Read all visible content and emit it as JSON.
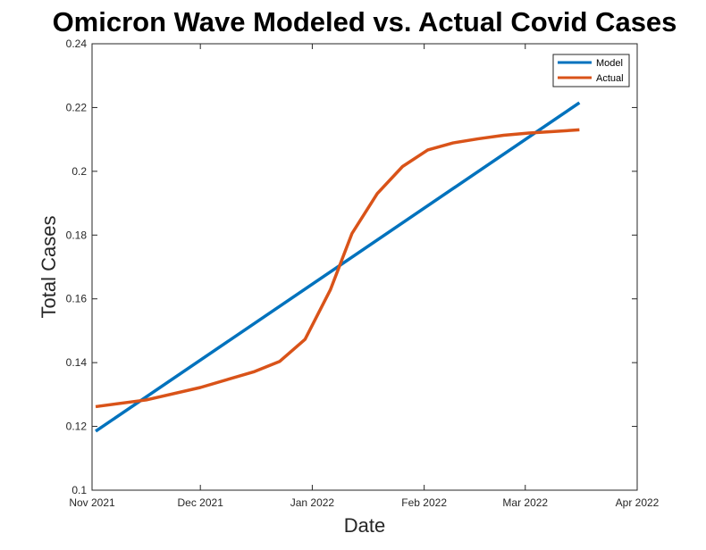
{
  "chart_data": {
    "type": "line",
    "title": "Omicron Wave Modeled vs. Actual Covid Cases",
    "xlabel": "Date",
    "ylabel": "Total Cases",
    "x_axis_type": "date",
    "xlim": [
      "2021-11-01",
      "2022-04-01"
    ],
    "ylim": [
      0.1,
      0.24
    ],
    "x_ticks": [
      {
        "date": "2021-11-01",
        "label": "Nov 2021"
      },
      {
        "date": "2021-12-01",
        "label": "Dec 2021"
      },
      {
        "date": "2022-01-01",
        "label": "Jan 2022"
      },
      {
        "date": "2022-02-01",
        "label": "Feb 2022"
      },
      {
        "date": "2022-03-01",
        "label": "Mar 2022"
      },
      {
        "date": "2022-04-01",
        "label": "Apr 2022"
      }
    ],
    "y_ticks": [
      0.1,
      0.12,
      0.14,
      0.16,
      0.18,
      0.2,
      0.22,
      0.24
    ],
    "y_tick_labels": [
      "0.1",
      "0.12",
      "0.14",
      "0.16",
      "0.18",
      "0.2",
      "0.22",
      "0.24"
    ],
    "grid": false,
    "box": true,
    "legend_position": "top-right",
    "series": [
      {
        "name": "Model",
        "color": "#0072BD",
        "points": [
          {
            "x": "2021-11-02",
            "y": 0.1185
          },
          {
            "x": "2022-03-16",
            "y": 0.2215
          }
        ]
      },
      {
        "name": "Actual",
        "color": "#D95319",
        "points": [
          {
            "x": "2021-11-02",
            "y": 0.1262
          },
          {
            "x": "2021-11-16",
            "y": 0.1283
          },
          {
            "x": "2021-12-01",
            "y": 0.1322
          },
          {
            "x": "2021-12-16",
            "y": 0.1372
          },
          {
            "x": "2021-12-23",
            "y": 0.1404
          },
          {
            "x": "2021-12-30",
            "y": 0.1473
          },
          {
            "x": "2022-01-06",
            "y": 0.1628
          },
          {
            "x": "2022-01-12",
            "y": 0.1805
          },
          {
            "x": "2022-01-19",
            "y": 0.193
          },
          {
            "x": "2022-01-26",
            "y": 0.2015
          },
          {
            "x": "2022-02-02",
            "y": 0.2067
          },
          {
            "x": "2022-02-09",
            "y": 0.2089
          },
          {
            "x": "2022-02-16",
            "y": 0.2102
          },
          {
            "x": "2022-02-23",
            "y": 0.2113
          },
          {
            "x": "2022-03-02",
            "y": 0.212
          },
          {
            "x": "2022-03-09",
            "y": 0.2125
          },
          {
            "x": "2022-03-16",
            "y": 0.213
          }
        ]
      }
    ]
  }
}
